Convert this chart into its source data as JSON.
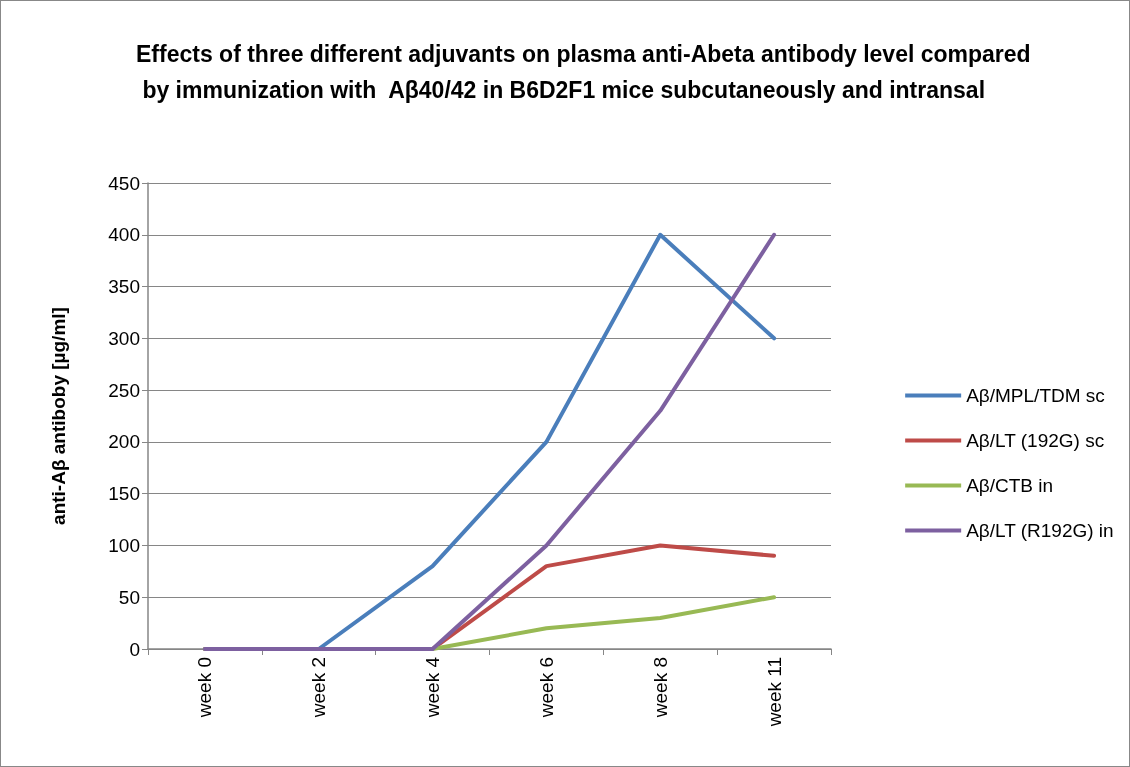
{
  "chart_data": {
    "type": "line",
    "title": "Effects of three different adjuvants on plasma anti-Abeta antibody level compared by immunization with  Aβ40/42 in B6D2F1 mice subcutaneously and intransal",
    "ylabel": "anti-Aβ antiboby [µg/ml]",
    "categories": [
      "week 0",
      "week 2",
      "week 4",
      "week 6",
      "week 8",
      "week 11"
    ],
    "series": [
      {
        "name": "Aβ/MPL/TDM sc",
        "color": "#4a7ebb",
        "values": [
          0,
          0,
          80,
          200,
          400,
          300
        ]
      },
      {
        "name": "Aβ/LT (192G) sc",
        "color": "#be4b48",
        "values": [
          0,
          0,
          0,
          80,
          100,
          90
        ]
      },
      {
        "name": "Aβ/CTB in",
        "color": "#98b954",
        "values": [
          0,
          0,
          0,
          20,
          30,
          50
        ]
      },
      {
        "name": "Aβ/LT (R192G) in",
        "color": "#7d60a0",
        "values": [
          0,
          0,
          0,
          100,
          230,
          400
        ]
      }
    ],
    "ylim": [
      0,
      450
    ],
    "yticks": [
      0,
      50,
      100,
      150,
      200,
      250,
      300,
      350,
      400,
      450
    ],
    "grid": "y",
    "legend": "right",
    "marker": "none",
    "line_style": "solid"
  }
}
